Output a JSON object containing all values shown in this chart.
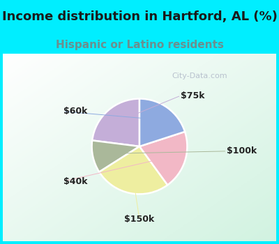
{
  "title": "Income distribution in Hartford, AL (%)",
  "subtitle": "Hispanic or Latino residents",
  "title_color": "#1a1a1a",
  "subtitle_color": "#6b8f8f",
  "bg_top": "#00eeff",
  "slices": [
    {
      "label": "$75k",
      "value": 23,
      "color": "#c4aed8"
    },
    {
      "label": "$100k",
      "value": 11,
      "color": "#aab89a"
    },
    {
      "label": "$150k",
      "value": 26,
      "color": "#eeeea0"
    },
    {
      "label": "$40k",
      "value": 20,
      "color": "#f2b8c6"
    },
    {
      "label": "$60k",
      "value": 20,
      "color": "#8eaae0"
    }
  ],
  "startangle": 90,
  "title_fontsize": 13,
  "subtitle_fontsize": 11,
  "label_fontsize": 9,
  "watermark": "City-Data.com",
  "watermark_color": "#b0b8c8",
  "label_color": "#222222"
}
